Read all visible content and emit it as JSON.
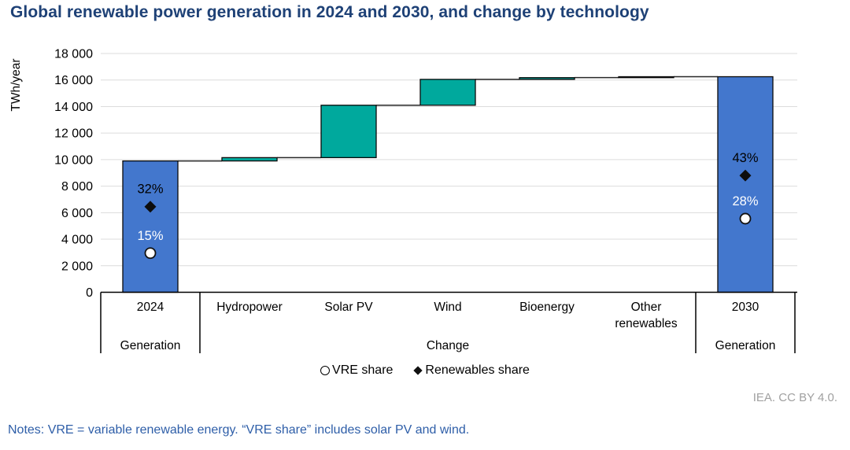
{
  "title": "Global renewable power generation in 2024 and 2030, and change by technology",
  "credit": "IEA. CC BY 4.0.",
  "notes": "Notes: VRE = variable renewable energy. “VRE share” includes solar PV and wind.",
  "legend": {
    "items": [
      {
        "marker": "circle-outline",
        "label": "VRE share"
      },
      {
        "marker": "diamond-filled",
        "label": "Renewables share"
      }
    ]
  },
  "colors": {
    "title": "#1E4176",
    "notes": "#2E5EA8",
    "credit": "#A0A0A0",
    "bar_total": "#4377CD",
    "bar_change": "#00A99D",
    "grid": "#DCDCDC",
    "axis": "#000000",
    "connector": "#262626",
    "marker_diamond": "#0D0D0D",
    "marker_circle_fill": "#FFFFFF"
  },
  "chart_data": {
    "type": "bar",
    "subtype": "waterfall",
    "title": "Global renewable power generation in 2024 and 2030, and change by technology",
    "ylabel": "TWh/year",
    "ylim": [
      0,
      18000
    ],
    "grid": true,
    "legend_position": "bottom",
    "yticks": [
      {
        "value": 0,
        "label": "0"
      },
      {
        "value": 2000,
        "label": "2 000"
      },
      {
        "value": 4000,
        "label": "4 000"
      },
      {
        "value": 6000,
        "label": "6 000"
      },
      {
        "value": 8000,
        "label": "8 000"
      },
      {
        "value": 10000,
        "label": "10 000"
      },
      {
        "value": 12000,
        "label": "12 000"
      },
      {
        "value": 14000,
        "label": "14 000"
      },
      {
        "value": 16000,
        "label": "16 000"
      },
      {
        "value": 18000,
        "label": "18 000"
      }
    ],
    "columns": [
      {
        "label": "2024",
        "label_lines": [
          "2024"
        ],
        "group": "Generation",
        "role": "total",
        "start": 0,
        "end": 9900,
        "markers": [
          {
            "shape": "diamond",
            "series": "Renewables share",
            "label": "32%",
            "value": 6450,
            "label_color": "#000000"
          },
          {
            "shape": "circle",
            "series": "VRE share",
            "label": "15%",
            "value": 2950,
            "label_color": "#FFFFFF"
          }
        ]
      },
      {
        "label": "Hydropower",
        "label_lines": [
          "Hydropower"
        ],
        "group": "Change",
        "role": "change",
        "start": 9900,
        "end": 10150
      },
      {
        "label": "Solar PV",
        "label_lines": [
          "Solar PV"
        ],
        "group": "Change",
        "role": "change",
        "start": 10150,
        "end": 14100
      },
      {
        "label": "Wind",
        "label_lines": [
          "Wind"
        ],
        "group": "Change",
        "role": "change",
        "start": 14100,
        "end": 16050
      },
      {
        "label": "Bioenergy",
        "label_lines": [
          "Bioenergy"
        ],
        "group": "Change",
        "role": "change",
        "start": 16050,
        "end": 16180
      },
      {
        "label": "Other renewables",
        "label_lines": [
          "Other",
          "renewables"
        ],
        "group": "Change",
        "role": "change",
        "start": 16180,
        "end": 16250
      },
      {
        "label": "2030",
        "label_lines": [
          "2030"
        ],
        "group": "Generation",
        "role": "total",
        "start": 0,
        "end": 16250,
        "markers": [
          {
            "shape": "diamond",
            "series": "Renewables share",
            "label": "43%",
            "value": 8800,
            "label_color": "#000000"
          },
          {
            "shape": "circle",
            "series": "VRE share",
            "label": "28%",
            "value": 5550,
            "label_color": "#FFFFFF"
          }
        ]
      }
    ],
    "group_labels": [
      "Generation",
      "Change",
      "Generation"
    ],
    "group_spans": [
      [
        0,
        0
      ],
      [
        1,
        5
      ],
      [
        6,
        6
      ]
    ]
  }
}
